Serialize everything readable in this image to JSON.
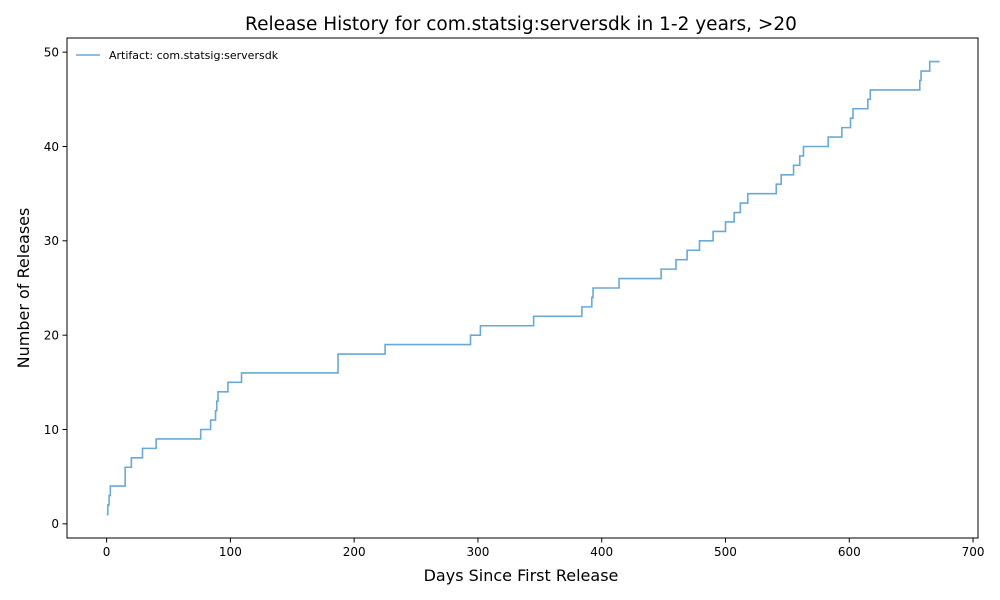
{
  "chart_data": {
    "type": "line",
    "step": "post",
    "title": "Release History for com.statsig:serversdk in 1-2 years, >20",
    "xlabel": "Days Since First Release",
    "ylabel": "Number of Releases",
    "xlim": [
      -32,
      704
    ],
    "ylim": [
      -1.5,
      51.5
    ],
    "xticks": [
      0,
      100,
      200,
      300,
      400,
      500,
      600,
      700
    ],
    "yticks": [
      0,
      10,
      20,
      30,
      40,
      50
    ],
    "grid": false,
    "legend_position": "upper left",
    "series": [
      {
        "name": "Artifact: com.statsig:serversdk",
        "color": "#6aa9d3",
        "x": [
          0,
          1,
          2,
          3,
          15,
          20,
          29,
          40,
          76,
          84,
          88,
          89,
          90,
          98,
          109,
          187,
          225,
          294,
          302,
          345,
          384,
          392,
          393,
          414,
          448,
          460,
          469,
          479,
          490,
          500,
          507,
          512,
          518,
          541,
          545,
          555,
          560,
          563,
          583,
          594,
          601,
          602,
          603,
          615,
          617,
          657,
          658,
          660,
          665,
          673
        ],
        "values": [
          1,
          2,
          3,
          4,
          6,
          7,
          8,
          9,
          10,
          11,
          12,
          13,
          14,
          15,
          16,
          18,
          19,
          20,
          21,
          22,
          23,
          24,
          25,
          26,
          27,
          28,
          29,
          30,
          31,
          32,
          33,
          34,
          35,
          36,
          37,
          38,
          39,
          40,
          41,
          42,
          43,
          43,
          44,
          45,
          46,
          47,
          48,
          48,
          49,
          49
        ]
      }
    ]
  }
}
